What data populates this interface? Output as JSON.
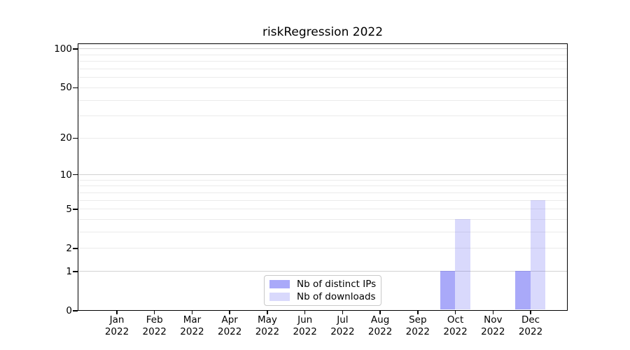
{
  "title": "riskRegression 2022",
  "legend": {
    "items": [
      {
        "label": "Nb of distinct IPs",
        "color": "#a9a9f9",
        "rgba": "rgba(98,98,244,0.55)"
      },
      {
        "label": "Nb of downloads",
        "color": "#d9d9fc",
        "rgba": "rgba(98,98,244,0.24)"
      }
    ],
    "position": "inside-bottom-center"
  },
  "y_axis": {
    "scale": "log1p",
    "ticks": [
      {
        "label": "100",
        "value": 100
      },
      {
        "label": "50",
        "value": 50
      },
      {
        "label": "20",
        "value": 20
      },
      {
        "label": "10",
        "value": 10
      },
      {
        "label": "5",
        "value": 5
      },
      {
        "label": "2",
        "value": 2
      },
      {
        "label": "1",
        "value": 1
      },
      {
        "label": "0",
        "value": 0
      }
    ],
    "major_gridline_values": [
      1,
      10,
      100
    ],
    "minor_gridline_values": [
      2,
      3,
      4,
      5,
      6,
      7,
      8,
      9,
      20,
      30,
      40,
      50,
      60,
      70,
      80,
      90
    ]
  },
  "chart_data": {
    "type": "bar",
    "title": "riskRegression 2022",
    "categories": [
      "Jan 2022",
      "Feb 2022",
      "Mar 2022",
      "Apr 2022",
      "May 2022",
      "Jun 2022",
      "Jul 2022",
      "Aug 2022",
      "Sep 2022",
      "Oct 2022",
      "Nov 2022",
      "Dec 2022"
    ],
    "series": [
      {
        "name": "Nb of distinct IPs",
        "values": [
          0,
          0,
          0,
          0,
          0,
          0,
          0,
          0,
          0,
          1,
          0,
          1
        ]
      },
      {
        "name": "Nb of downloads",
        "values": [
          0,
          0,
          0,
          0,
          0,
          0,
          0,
          0,
          0,
          4,
          0,
          6
        ]
      }
    ],
    "yscale": "log1p",
    "ylim": [
      0,
      110
    ],
    "yticks": [
      0,
      1,
      2,
      5,
      10,
      20,
      50,
      100
    ],
    "grid": "horizontal",
    "legend_position": "inside lower center"
  },
  "colors": {
    "distinct_ips_bar": "#a9a9f9",
    "downloads_bar": "#d9d9fc",
    "grid_minor": "#ebebeb",
    "grid_major": "#d2d2d2",
    "axis": "#000000",
    "background": "#ffffff",
    "legend_border": "#c9c9c9"
  }
}
